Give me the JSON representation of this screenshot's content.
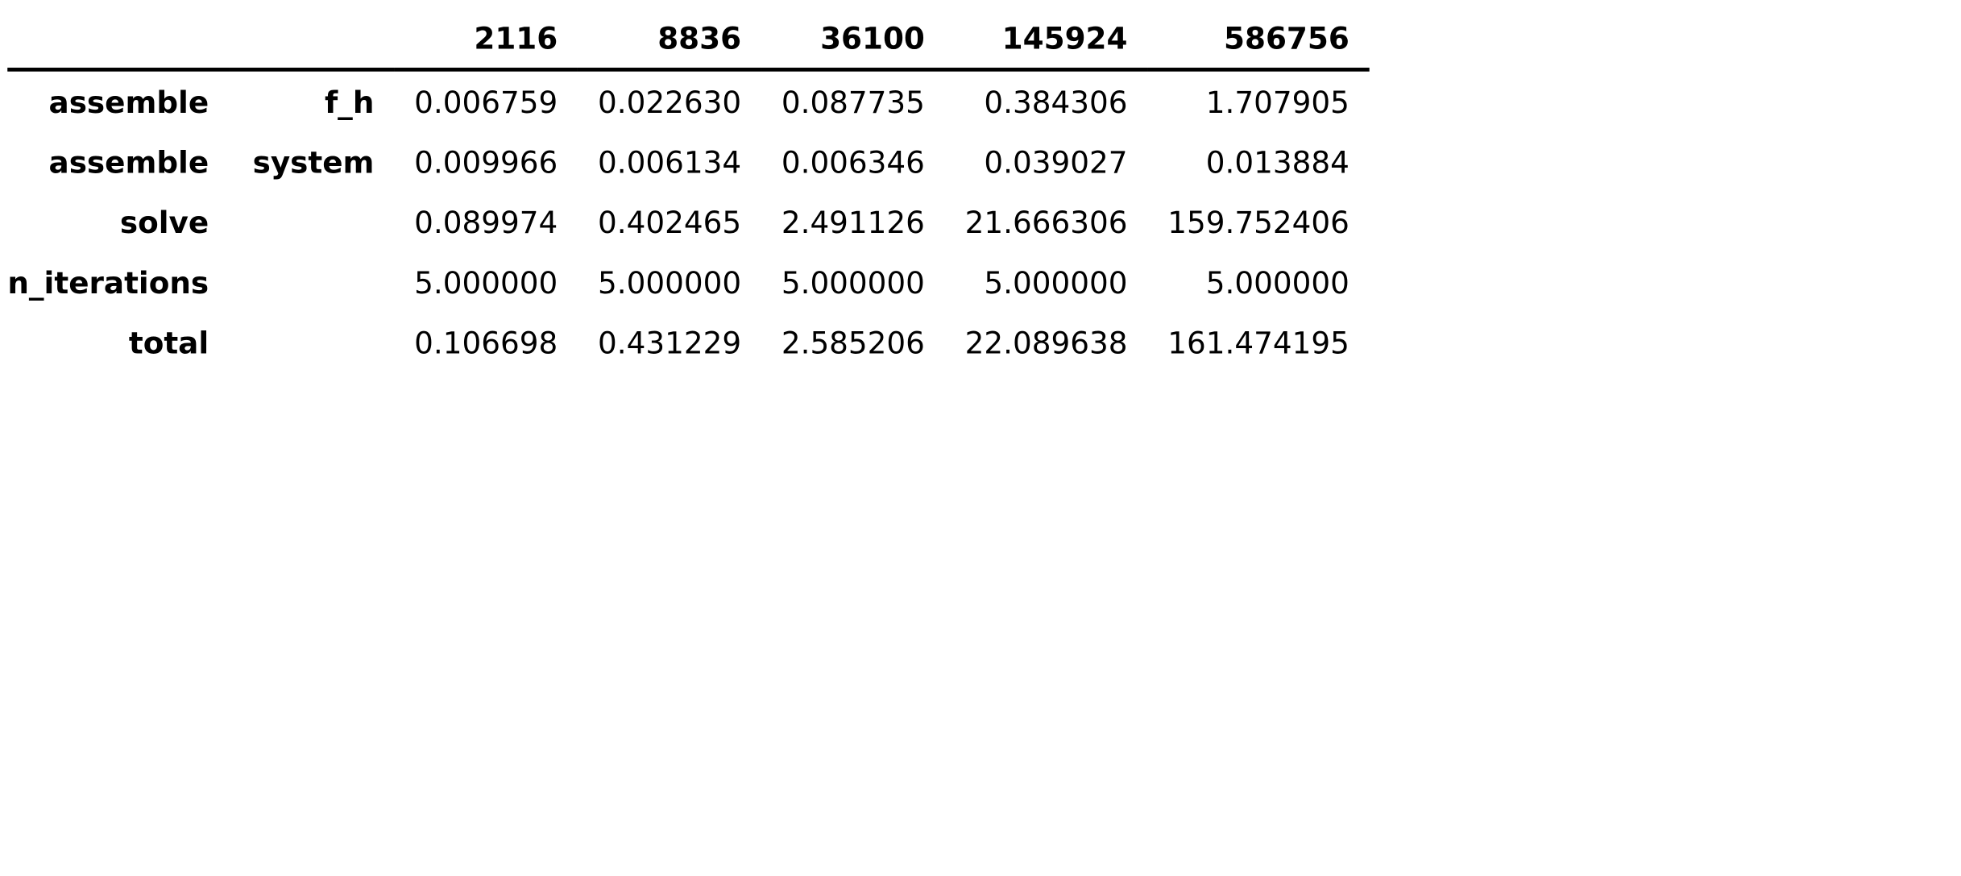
{
  "table": {
    "columns": [
      "2116",
      "8836",
      "36100",
      "145924",
      "586756"
    ],
    "rows": [
      {
        "index": [
          "assemble",
          "f_h"
        ],
        "values": [
          "0.006759",
          "0.022630",
          "0.087735",
          "0.384306",
          "1.707905"
        ]
      },
      {
        "index": [
          "assemble",
          "system"
        ],
        "values": [
          "0.009966",
          "0.006134",
          "0.006346",
          "0.039027",
          "0.013884"
        ]
      },
      {
        "index": [
          "solve",
          ""
        ],
        "values": [
          "0.089974",
          "0.402465",
          "2.491126",
          "21.666306",
          "159.752406"
        ]
      },
      {
        "index": [
          "n_iterations",
          ""
        ],
        "values": [
          "5.000000",
          "5.000000",
          "5.000000",
          "5.000000",
          "5.000000"
        ]
      },
      {
        "index": [
          "total",
          ""
        ],
        "values": [
          "0.106698",
          "0.431229",
          "2.585206",
          "22.089638",
          "161.474195"
        ]
      }
    ]
  }
}
